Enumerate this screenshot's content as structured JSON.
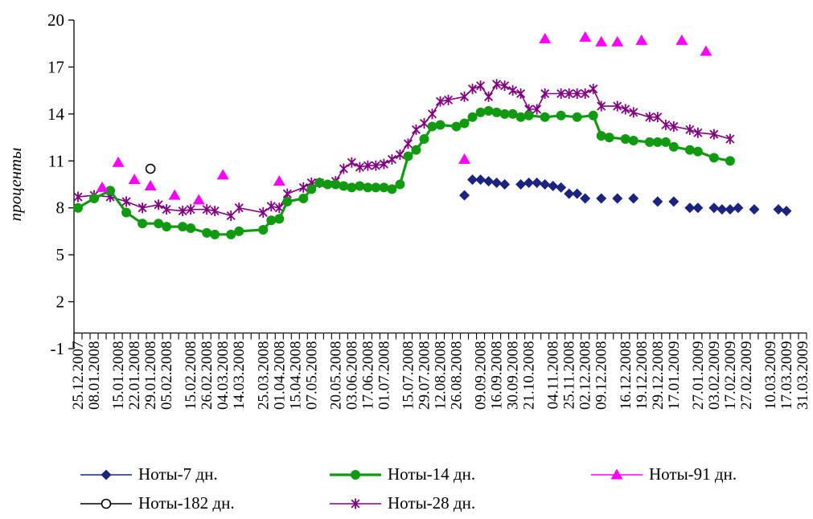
{
  "chart_data": {
    "type": "line",
    "title": "",
    "xlabel": "",
    "ylabel": "проценты",
    "ylim": [
      -1,
      20
    ],
    "yticks": [
      -1,
      2,
      5,
      8,
      11,
      14,
      17,
      20
    ],
    "xtick_labels": [
      "25.12.2007",
      "08.01.2008",
      "15.01.2008",
      "22.01.2008",
      "29.01.2008",
      "05.02.2008",
      "15.02.2008",
      "26.02.2008",
      "04.03.2008",
      "14.03.2008",
      "25.03.2008",
      "01.04.2008",
      "15.04.2008",
      "07.05.2008",
      "20.05.2008",
      "03.06.2008",
      "17.06.2008",
      "01.07.2008",
      "15.07.2008",
      "29.07.2008",
      "12.08.2008",
      "26.08.2008",
      "09.09.2008",
      "16.09.2008",
      "30.09.2008",
      "21.10.2008",
      "04.11.2008",
      "25.11.2008",
      "02.12.2008",
      "09.12.2008",
      "16.12.2008",
      "19.12.2008",
      "29.12.2008",
      "17.01.2009",
      "27.01.2009",
      "03.02.2009",
      "17.02.2009",
      "27.02.2009",
      "10.03.2009",
      "17.03.2009",
      "31.03.2009"
    ],
    "x_count": 91,
    "grid": false,
    "legend_position": "bottom",
    "series": [
      {
        "name": "Ноты-7 дн.",
        "color": "#1a237e",
        "marker": "diamond",
        "line": false,
        "points": [
          [
            48,
            8.8
          ],
          [
            49,
            9.8
          ],
          [
            50,
            9.8
          ],
          [
            51,
            9.7
          ],
          [
            52,
            9.6
          ],
          [
            53,
            9.5
          ],
          [
            55,
            9.5
          ],
          [
            56,
            9.6
          ],
          [
            57,
            9.6
          ],
          [
            58,
            9.5
          ],
          [
            59,
            9.4
          ],
          [
            60,
            9.3
          ],
          [
            61,
            8.9
          ],
          [
            62,
            8.9
          ],
          [
            63,
            8.6
          ],
          [
            65,
            8.6
          ],
          [
            67,
            8.6
          ],
          [
            69,
            8.6
          ],
          [
            72,
            8.4
          ],
          [
            74,
            8.4
          ],
          [
            76,
            8.0
          ],
          [
            77,
            8.0
          ],
          [
            79,
            8.0
          ],
          [
            80,
            7.9
          ],
          [
            81,
            7.9
          ],
          [
            82,
            8.0
          ],
          [
            84,
            7.9
          ],
          [
            87,
            7.9
          ],
          [
            88,
            7.8
          ]
        ]
      },
      {
        "name": "Ноты-14 дн.",
        "color": "#119a11",
        "marker": "circle",
        "line": true,
        "points": [
          [
            0,
            8.0
          ],
          [
            2,
            8.6
          ],
          [
            4,
            9.1
          ],
          [
            6,
            7.7
          ],
          [
            8,
            7.0
          ],
          [
            10,
            7.0
          ],
          [
            11,
            6.8
          ],
          [
            13,
            6.8
          ],
          [
            14,
            6.7
          ],
          [
            16,
            6.4
          ],
          [
            17,
            6.3
          ],
          [
            19,
            6.3
          ],
          [
            20,
            6.5
          ],
          [
            23,
            6.6
          ],
          [
            24,
            7.2
          ],
          [
            25,
            7.3
          ],
          [
            26,
            8.4
          ],
          [
            28,
            8.6
          ],
          [
            29,
            9.2
          ],
          [
            30,
            9.6
          ],
          [
            31,
            9.5
          ],
          [
            32,
            9.5
          ],
          [
            33,
            9.4
          ],
          [
            34,
            9.3
          ],
          [
            35,
            9.4
          ],
          [
            36,
            9.3
          ],
          [
            37,
            9.3
          ],
          [
            38,
            9.3
          ],
          [
            39,
            9.2
          ],
          [
            40,
            9.5
          ],
          [
            41,
            11.3
          ],
          [
            42,
            11.7
          ],
          [
            43,
            12.4
          ],
          [
            44,
            13.2
          ],
          [
            45,
            13.3
          ],
          [
            47,
            13.2
          ],
          [
            48,
            13.4
          ],
          [
            49,
            13.8
          ],
          [
            50,
            14.1
          ],
          [
            51,
            14.2
          ],
          [
            52,
            14.1
          ],
          [
            53,
            14.0
          ],
          [
            54,
            14.0
          ],
          [
            55,
            13.8
          ],
          [
            56,
            13.9
          ],
          [
            58,
            13.8
          ],
          [
            60,
            13.9
          ],
          [
            62,
            13.8
          ],
          [
            64,
            13.9
          ],
          [
            65,
            12.6
          ],
          [
            66,
            12.5
          ],
          [
            68,
            12.4
          ],
          [
            69,
            12.3
          ],
          [
            71,
            12.2
          ],
          [
            72,
            12.2
          ],
          [
            73,
            12.2
          ],
          [
            74,
            11.9
          ],
          [
            76,
            11.7
          ],
          [
            77,
            11.6
          ],
          [
            79,
            11.2
          ],
          [
            81,
            11.0
          ]
        ]
      },
      {
        "name": "Ноты-91 дн.",
        "color": "#ff00ff",
        "marker": "triangle",
        "line": false,
        "points": [
          [
            3,
            9.3
          ],
          [
            5,
            10.9
          ],
          [
            7,
            9.8
          ],
          [
            9,
            9.4
          ],
          [
            12,
            8.8
          ],
          [
            15,
            8.5
          ],
          [
            18,
            10.1
          ],
          [
            25,
            9.7
          ],
          [
            48,
            11.1
          ],
          [
            58,
            18.8
          ],
          [
            63,
            18.9
          ],
          [
            65,
            18.6
          ],
          [
            67,
            18.6
          ],
          [
            70,
            18.7
          ],
          [
            75,
            18.7
          ],
          [
            78,
            18.0
          ]
        ]
      },
      {
        "name": "Ноты-182 дн.",
        "color": "#000000",
        "marker": "open-circle",
        "line": false,
        "points": [
          [
            9,
            10.5
          ]
        ]
      },
      {
        "name": "Ноты-28 дн.",
        "color": "#800080",
        "marker": "star",
        "line": true,
        "points": [
          [
            0,
            8.7
          ],
          [
            2,
            8.8
          ],
          [
            4,
            8.7
          ],
          [
            6,
            8.4
          ],
          [
            8,
            8.0
          ],
          [
            10,
            8.2
          ],
          [
            11,
            7.9
          ],
          [
            13,
            7.8
          ],
          [
            14,
            7.9
          ],
          [
            16,
            7.9
          ],
          [
            17,
            7.8
          ],
          [
            19,
            7.5
          ],
          [
            20,
            8.0
          ],
          [
            23,
            7.7
          ],
          [
            24,
            8.1
          ],
          [
            25,
            8.0
          ],
          [
            26,
            8.9
          ],
          [
            28,
            9.3
          ],
          [
            29,
            9.6
          ],
          [
            30,
            9.6
          ],
          [
            32,
            9.7
          ],
          [
            33,
            10.5
          ],
          [
            34,
            10.9
          ],
          [
            35,
            10.6
          ],
          [
            36,
            10.7
          ],
          [
            37,
            10.7
          ],
          [
            38,
            10.8
          ],
          [
            39,
            11.1
          ],
          [
            40,
            11.4
          ],
          [
            41,
            12.1
          ],
          [
            42,
            13.0
          ],
          [
            43,
            13.4
          ],
          [
            44,
            14.0
          ],
          [
            45,
            14.8
          ],
          [
            46,
            14.9
          ],
          [
            48,
            15.1
          ],
          [
            49,
            15.6
          ],
          [
            50,
            15.8
          ],
          [
            51,
            15.1
          ],
          [
            52,
            15.9
          ],
          [
            53,
            15.8
          ],
          [
            54,
            15.5
          ],
          [
            55,
            15.3
          ],
          [
            56,
            14.3
          ],
          [
            57,
            14.3
          ],
          [
            58,
            15.3
          ],
          [
            60,
            15.3
          ],
          [
            61,
            15.3
          ],
          [
            62,
            15.3
          ],
          [
            63,
            15.3
          ],
          [
            64,
            15.6
          ],
          [
            65,
            14.5
          ],
          [
            67,
            14.5
          ],
          [
            68,
            14.3
          ],
          [
            69,
            14.1
          ],
          [
            71,
            13.8
          ],
          [
            72,
            13.8
          ],
          [
            73,
            13.3
          ],
          [
            74,
            13.2
          ],
          [
            76,
            13.0
          ],
          [
            77,
            12.8
          ],
          [
            79,
            12.7
          ],
          [
            81,
            12.4
          ]
        ]
      }
    ]
  }
}
